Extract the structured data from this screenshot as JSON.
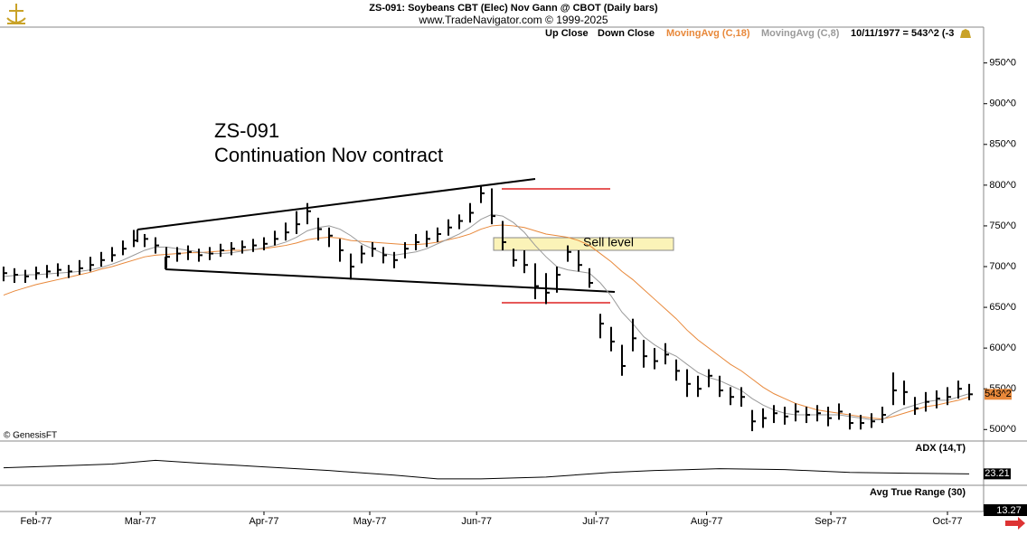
{
  "header": {
    "title": "ZS-091:  Soybeans CBT (Elec) Nov Gann @ CBOT  (Daily bars)",
    "source": "www.TradeNavigator.com © 1999-2025"
  },
  "chart_data": {
    "type": "ohlc",
    "legend_items": [
      "Up Close",
      "Down Close"
    ],
    "status": "10/11/1977 = 543^2 (-3",
    "annotations": [
      "ZS-091",
      "Continuation Nov contract",
      "Sell level"
    ],
    "copyright": "© GenesisFT",
    "last_price": {
      "value": 543.25,
      "label": "543^2"
    },
    "bar_color": "#000000",
    "high": [
      700,
      698,
      696,
      700,
      702,
      704,
      702,
      708,
      712,
      718,
      724,
      732,
      745,
      740,
      736,
      724,
      724,
      726,
      722,
      724,
      728,
      730,
      732,
      734,
      736,
      744,
      754,
      768,
      778,
      760,
      748,
      734,
      716,
      726,
      730,
      724,
      718,
      730,
      740,
      744,
      748,
      758,
      764,
      778,
      800,
      796,
      756,
      722,
      720,
      704,
      692,
      700,
      726,
      720,
      698,
      642,
      626,
      604,
      636,
      610,
      600,
      606,
      586,
      574,
      566,
      574,
      566,
      552,
      552,
      524,
      526,
      530,
      528,
      532,
      528,
      530,
      528,
      532,
      520,
      518,
      520,
      528,
      570,
      560,
      540,
      546,
      548,
      552,
      560,
      556
    ],
    "low": [
      682,
      680,
      680,
      684,
      686,
      688,
      686,
      690,
      694,
      700,
      706,
      714,
      724,
      724,
      716,
      698,
      706,
      708,
      706,
      708,
      712,
      714,
      716,
      718,
      720,
      726,
      732,
      740,
      752,
      732,
      724,
      706,
      684,
      704,
      712,
      704,
      698,
      710,
      720,
      724,
      730,
      738,
      746,
      754,
      778,
      752,
      720,
      700,
      692,
      660,
      654,
      668,
      706,
      694,
      674,
      612,
      596,
      566,
      596,
      576,
      574,
      580,
      560,
      540,
      540,
      552,
      540,
      530,
      528,
      498,
      502,
      508,
      506,
      510,
      508,
      510,
      504,
      512,
      500,
      500,
      502,
      508,
      530,
      530,
      518,
      522,
      526,
      530,
      538,
      536
    ],
    "close": [
      692,
      690,
      688,
      692,
      694,
      696,
      694,
      698,
      702,
      708,
      714,
      722,
      732,
      734,
      726,
      712,
      716,
      718,
      714,
      716,
      720,
      722,
      724,
      726,
      728,
      734,
      742,
      752,
      768,
      746,
      738,
      720,
      700,
      716,
      722,
      714,
      708,
      722,
      730,
      734,
      740,
      748,
      756,
      766,
      790,
      762,
      730,
      708,
      702,
      676,
      668,
      690,
      718,
      702,
      680,
      630,
      608,
      578,
      612,
      590,
      584,
      592,
      572,
      556,
      550,
      566,
      548,
      540,
      540,
      510,
      514,
      520,
      516,
      522,
      518,
      520,
      514,
      522,
      508,
      508,
      510,
      518,
      548,
      546,
      526,
      534,
      538,
      540,
      550,
      543.25
    ],
    "series": [
      {
        "name": "MovingAvg (C,18)",
        "color": "#e8883a",
        "values": [
          665,
          670,
          674,
          678,
          681,
          684,
          687,
          690,
          693,
          697,
          700,
          704,
          708,
          712,
          714,
          715,
          716,
          717,
          717,
          718,
          719,
          720,
          720,
          721,
          722,
          724,
          726,
          729,
          733,
          735,
          736,
          735,
          732,
          731,
          730,
          729,
          728,
          727,
          727,
          728,
          730,
          733,
          736,
          740,
          746,
          750,
          751,
          750,
          748,
          744,
          740,
          738,
          736,
          732,
          726,
          716,
          706,
          694,
          684,
          672,
          660,
          648,
          636,
          622,
          610,
          600,
          590,
          580,
          572,
          562,
          552,
          544,
          538,
          532,
          528,
          524,
          522,
          520,
          518,
          516,
          514,
          513,
          516,
          520,
          524,
          528,
          530,
          533,
          536,
          540
        ]
      },
      {
        "name": "MovingAvg (C,8)",
        "color": "#9a9a9a",
        "values": [
          688,
          689,
          690,
          690,
          691,
          692,
          693,
          694,
          696,
          699,
          703,
          708,
          714,
          720,
          724,
          724,
          722,
          720,
          718,
          716,
          716,
          717,
          719,
          721,
          723,
          726,
          730,
          736,
          744,
          748,
          750,
          746,
          738,
          728,
          722,
          716,
          714,
          716,
          718,
          722,
          728,
          734,
          740,
          748,
          758,
          764,
          762,
          754,
          742,
          726,
          712,
          700,
          696,
          694,
          692,
          680,
          664,
          644,
          630,
          614,
          604,
          596,
          590,
          580,
          570,
          564,
          560,
          554,
          548,
          538,
          530,
          524,
          520,
          518,
          518,
          518,
          518,
          518,
          516,
          514,
          512,
          512,
          520,
          526,
          530,
          534,
          536,
          536,
          540,
          544
        ]
      }
    ],
    "xlim": [
      -0.33,
      90.33
    ],
    "xticks": [
      {
        "value": 3,
        "label": "Feb-77"
      },
      {
        "value": 12.6,
        "label": "Mar-77"
      },
      {
        "value": 24,
        "label": "Apr-77"
      },
      {
        "value": 33.75,
        "label": "May-77"
      },
      {
        "value": 43.6,
        "label": "Jun-77"
      },
      {
        "value": 54.6,
        "label": "Jul-77"
      },
      {
        "value": 64.8,
        "label": "Aug-77"
      },
      {
        "value": 76.25,
        "label": "Sep-77"
      },
      {
        "value": 87,
        "label": "Oct-77"
      }
    ],
    "ylim": [
      487,
      994
    ],
    "yticks": [
      {
        "value": 950,
        "label": "950^0"
      },
      {
        "value": 900,
        "label": "900^0"
      },
      {
        "value": 850,
        "label": "850^0"
      },
      {
        "value": 800,
        "label": "800^0"
      },
      {
        "value": 750,
        "label": "750^0"
      },
      {
        "value": 700,
        "label": "700^0"
      },
      {
        "value": 650,
        "label": "650^0"
      },
      {
        "value": 600,
        "label": "600^0"
      },
      {
        "value": 550,
        "label": "550^0"
      },
      {
        "value": 500,
        "label": "500^0"
      }
    ],
    "adx": {
      "name": "ADX (14,T)",
      "color": "#000000",
      "x": [
        0,
        5,
        10,
        14,
        18,
        24,
        30,
        36,
        40,
        44,
        50,
        56,
        60,
        66,
        72,
        78,
        84,
        89
      ],
      "values": [
        26.5,
        27.5,
        28.5,
        30.5,
        29,
        27,
        25,
        22.5,
        20.5,
        20.5,
        21.5,
        24,
        25,
        26,
        25.5,
        24,
        23.5,
        23.21
      ],
      "ylim": [
        18,
        40
      ]
    },
    "atr": {
      "name": "Avg True Range (30)",
      "value": 13.27
    }
  }
}
